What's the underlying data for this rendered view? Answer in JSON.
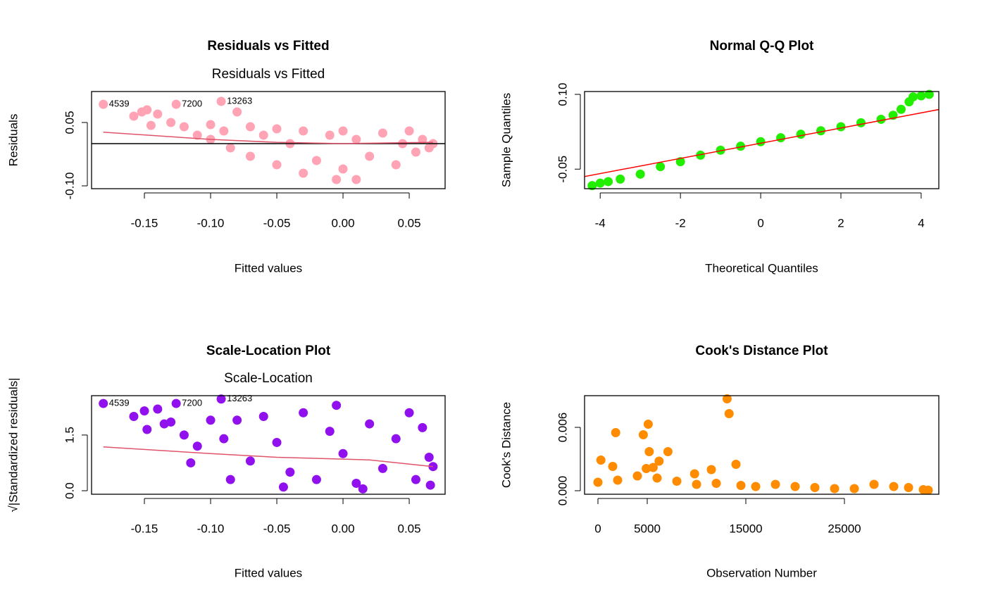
{
  "chart_data": [
    {
      "type": "scatter",
      "title": "Residuals vs Fitted",
      "subtitle": "Residuals vs Fitted",
      "xlabel": "Fitted values",
      "ylabel": "Residuals",
      "xlim": [
        -0.1899,
        0.0771
      ],
      "ylim": [
        -0.1067,
        0.1233
      ],
      "xticks": [
        {
          "value": -0.15,
          "label": "-0.15"
        },
        {
          "value": -0.1,
          "label": "-0.10"
        },
        {
          "value": -0.05,
          "label": "-0.05"
        },
        {
          "value": 0,
          "label": "0.00"
        },
        0.05
      ],
      "yticks": [
        {
          "value": -0.1,
          "label": "-0.10"
        },
        0.05
      ],
      "hline": 0,
      "points": {
        "color": "#ffa3b5",
        "x": [
          -0.158,
          -0.152,
          -0.148,
          -0.145,
          -0.14,
          -0.13,
          -0.12,
          -0.11,
          -0.1,
          -0.1,
          -0.09,
          -0.085,
          -0.08,
          -0.07,
          -0.07,
          -0.06,
          -0.05,
          -0.05,
          -0.04,
          -0.03,
          -0.03,
          -0.02,
          -0.01,
          0,
          0,
          0.01,
          0.01,
          0.02,
          0.03,
          0.04,
          0.045,
          0.05,
          0.055,
          0.06,
          0.065,
          0.068,
          -0.005
        ],
        "y": [
          0.065,
          0.075,
          0.08,
          0.043,
          0.07,
          0.05,
          0.04,
          0.02,
          0.01,
          0.045,
          0.03,
          -0.01,
          0.075,
          0.04,
          -0.03,
          0.02,
          0.035,
          -0.05,
          0,
          0.03,
          -0.07,
          -0.04,
          0.02,
          -0.06,
          0.03,
          -0.085,
          0.01,
          -0.03,
          0.025,
          -0.05,
          0,
          0.03,
          -0.02,
          0.01,
          -0.01,
          0,
          -0.085
        ]
      },
      "smooth": {
        "color": "#df536b",
        "x": [
          -0.181,
          -0.1,
          -0.05,
          0,
          0.068
        ],
        "y": [
          0.027,
          0.01,
          0.003,
          0,
          0.003
        ]
      },
      "labels": [
        {
          "x": -0.181,
          "y": 0.093,
          "text": "4539"
        },
        {
          "x": -0.126,
          "y": 0.093,
          "text": "7200"
        },
        {
          "x": -0.092,
          "y": 0.1,
          "text": "13263"
        }
      ]
    },
    {
      "type": "qq",
      "title": "Normal Q-Q Plot",
      "xlabel": "Theoretical Quantiles",
      "ylabel": "Sample Quantiles",
      "xlim": [
        -4.39,
        4.44
      ],
      "ylim": [
        -0.0892,
        0.1057
      ],
      "xticks": [
        -4,
        -2,
        0,
        2,
        4
      ],
      "yticks": [
        {
          "value": -0.05,
          "label": "-0.05"
        },
        {
          "value": 0.1,
          "label": "0.10"
        }
      ],
      "points": {
        "color": "#22ee00",
        "x": [
          -4.2,
          -4,
          -3.8,
          -3.5,
          -3,
          -2.5,
          -2,
          -1.5,
          -1,
          -0.5,
          0,
          0.5,
          1,
          1.5,
          2,
          2.5,
          3,
          3.3,
          3.5,
          3.7,
          3.8,
          4,
          4.2
        ],
        "y": [
          -0.083,
          -0.078,
          -0.075,
          -0.07,
          -0.06,
          -0.045,
          -0.035,
          -0.022,
          -0.012,
          -0.004,
          0.005,
          0.013,
          0.02,
          0.027,
          0.035,
          0.043,
          0.05,
          0.058,
          0.07,
          0.085,
          0.095,
          0.097,
          0.1
        ]
      },
      "smooth": {
        "color": "#ff0000",
        "x": [
          -4.5,
          4.5
        ],
        "y": [
          -0.0665,
          0.0705
        ]
      }
    },
    {
      "type": "scatter",
      "title": "Scale-Location Plot",
      "subtitle": "Scale-Location",
      "xlabel": "Fitted values",
      "ylabel": "√|Standardized residuals|",
      "xlim": [
        -0.1899,
        0.0771
      ],
      "ylim": [
        -0.095,
        2.56
      ],
      "xticks": [
        {
          "value": -0.15,
          "label": "-0.15"
        },
        {
          "value": -0.1,
          "label": "-0.10"
        },
        {
          "value": -0.05,
          "label": "-0.05"
        },
        {
          "value": 0,
          "label": "0.00"
        },
        0.05
      ],
      "yticks": [
        {
          "value": 0,
          "label": "0.0"
        },
        1.5
      ],
      "points": {
        "color": "#9010ee",
        "x": [
          -0.158,
          -0.15,
          -0.14,
          -0.148,
          -0.135,
          -0.13,
          -0.12,
          -0.115,
          -0.11,
          -0.1,
          -0.09,
          -0.08,
          -0.07,
          -0.06,
          -0.05,
          -0.04,
          -0.03,
          -0.02,
          -0.01,
          -0.005,
          0,
          0.01,
          0.02,
          0.03,
          0.04,
          0.05,
          0.055,
          0.06,
          0.065,
          0.068,
          0.066,
          -0.085,
          -0.045,
          0.015
        ],
        "y": [
          2.0,
          2.15,
          2.2,
          1.65,
          1.8,
          1.85,
          1.5,
          0.75,
          1.2,
          1.9,
          1.4,
          1.9,
          0.8,
          2.0,
          1.3,
          0.5,
          2.1,
          0.3,
          1.6,
          2.3,
          1.0,
          0.2,
          1.8,
          0.6,
          1.4,
          2.1,
          0.3,
          1.7,
          0.9,
          0.65,
          0.15,
          0.3,
          0.1,
          0.05
        ]
      },
      "smooth": {
        "color": "#df536b",
        "x": [
          -0.181,
          -0.1,
          -0.05,
          0,
          0.02,
          0.068
        ],
        "y": [
          1.18,
          1.0,
          0.9,
          0.85,
          0.83,
          0.65
        ]
      },
      "labels": [
        {
          "x": -0.181,
          "y": 2.35,
          "text": "4539"
        },
        {
          "x": -0.126,
          "y": 2.35,
          "text": "7200"
        },
        {
          "x": -0.092,
          "y": 2.47,
          "text": "13263"
        }
      ]
    },
    {
      "type": "scatter",
      "title": "Cook's Distance Plot",
      "xlabel": "Observation Number",
      "ylabel": "Cook's Distance",
      "xlim": [
        -1357,
        34570
      ],
      "ylim": [
        -0.000333,
        0.009
      ],
      "xticks": [
        0,
        5000,
        15000,
        25000
      ],
      "yticks": [
        {
          "value": 0,
          "label": "0.000"
        },
        0.006
      ],
      "points": {
        "color": "#ff8c00",
        "x": [
          13100,
          13300,
          5100,
          1800,
          4600,
          7100,
          5200,
          14000,
          300,
          1500,
          11500,
          6200,
          5600,
          9800,
          4900,
          0,
          2000,
          4000,
          6000,
          8000,
          10000,
          12000,
          14500,
          16000,
          18000,
          20000,
          22000,
          24000,
          26000,
          28000,
          30000,
          31500,
          33000,
          33500
        ],
        "y": [
          0.0087,
          0.0073,
          0.0063,
          0.0055,
          0.0053,
          0.0037,
          0.0037,
          0.0025,
          0.0029,
          0.0023,
          0.002,
          0.0028,
          0.0022,
          0.0016,
          0.0021,
          0.0008,
          0.001,
          0.0014,
          0.0012,
          0.0009,
          0.0006,
          0.0007,
          0.0005,
          0.0004,
          0.0006,
          0.0004,
          0.0003,
          0.0002,
          0.0002,
          0.0006,
          0.0004,
          0.0003,
          0.0001,
          5e-05
        ]
      }
    }
  ]
}
